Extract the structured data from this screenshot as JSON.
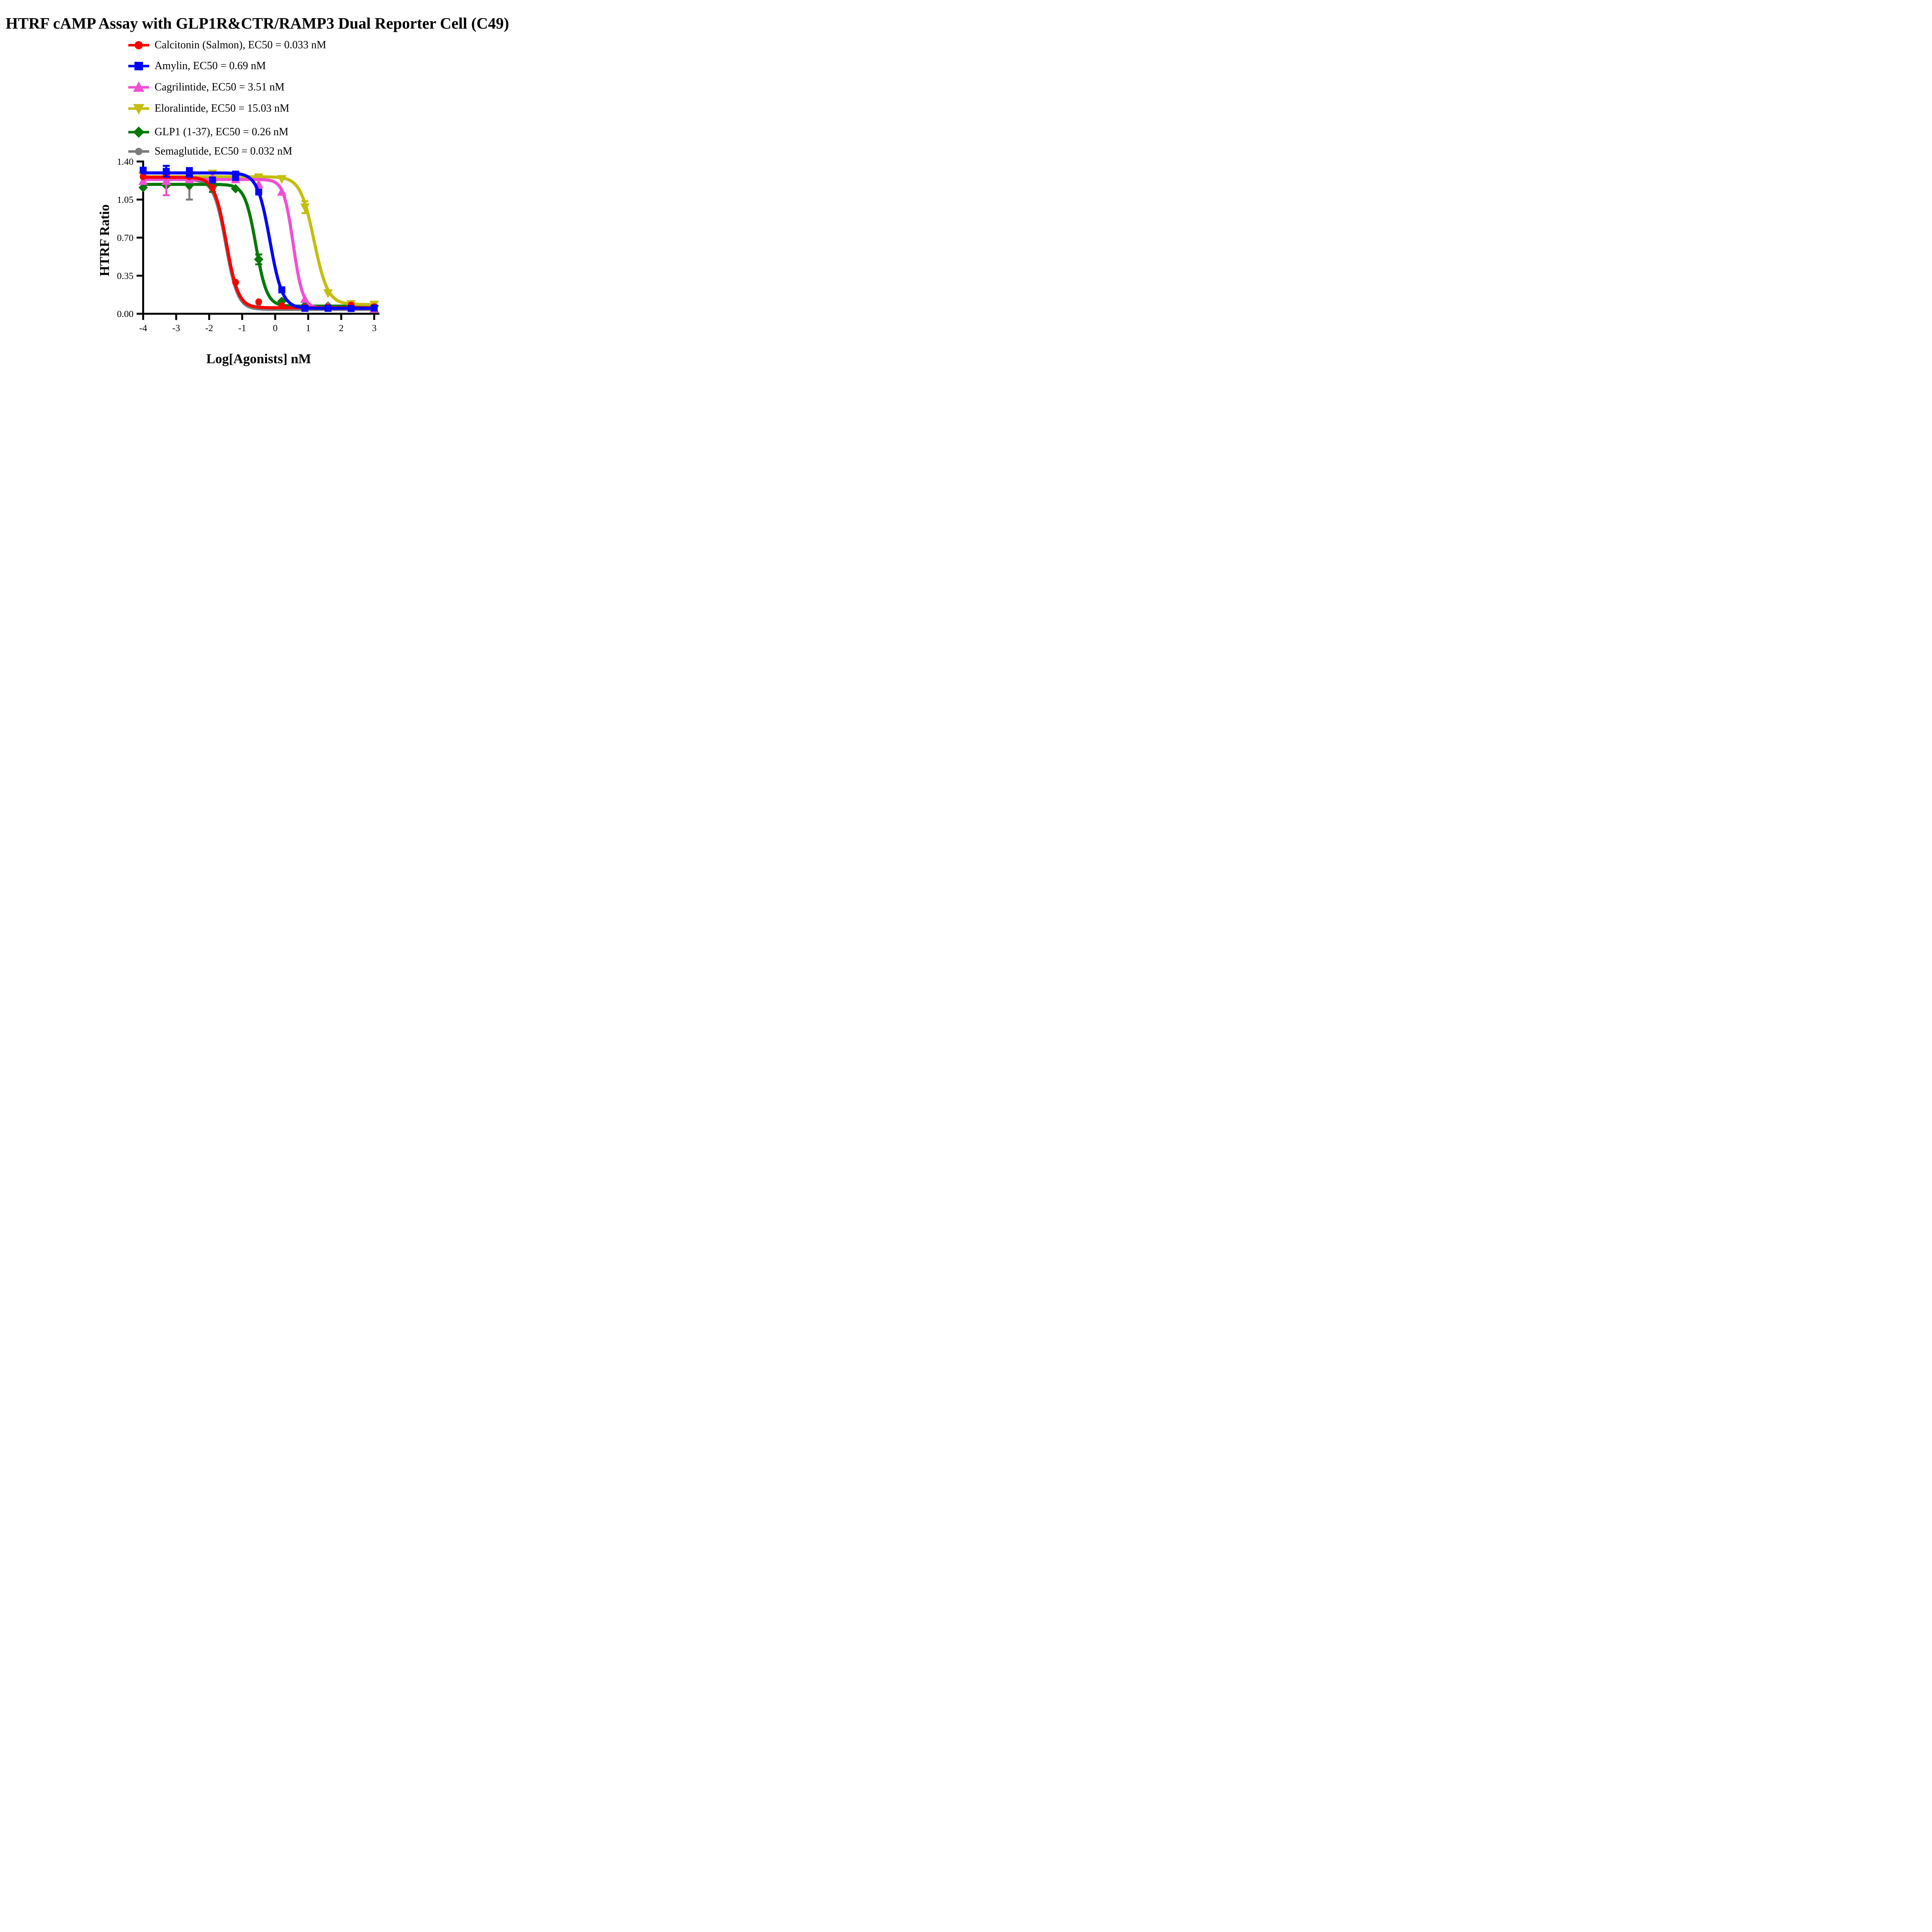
{
  "title": "HTRF cAMP Assay with GLP1R&CTR/RAMP3 Dual Reporter Cell (C49)",
  "legend": {
    "items": [
      {
        "label": "Calcitonin (Salmon), EC50 = 0.033 nM",
        "series": "Calcitonin (Salmon)"
      },
      {
        "label": "Amylin, EC50 = 0.69 nM",
        "series": "Amylin"
      },
      {
        "label": "Cagrilintide, EC50 = 3.51 nM",
        "series": "Cagrilintide"
      },
      {
        "label": "Eloralintide, EC50 = 15.03 nM",
        "series": "Eloralintide"
      },
      {
        "label": "GLP1 (1-37), EC50 = 0.26 nM",
        "series": "GLP1 (1-37)"
      },
      {
        "label": "Semaglutide, EC50 = 0.032 nM",
        "series": "Semaglutide"
      }
    ]
  },
  "axes": {
    "x": {
      "label": "Log[Agonists] nM",
      "min": -4,
      "max": 3,
      "ticks": [
        {
          "v": -4,
          "label": "-4"
        },
        {
          "v": -3,
          "label": "-3"
        },
        {
          "v": -2,
          "label": "-2"
        },
        {
          "v": -1,
          "label": "-1"
        },
        {
          "v": 0,
          "label": "0"
        },
        {
          "v": 1,
          "label": "1"
        },
        {
          "v": 2,
          "label": "2"
        },
        {
          "v": 3,
          "label": "3"
        }
      ]
    },
    "y": {
      "label": "HTRF Ratio",
      "min": 0,
      "max": 1.4,
      "ticks": [
        {
          "v": 0,
          "label": "0.00"
        },
        {
          "v": 0.35,
          "label": "0.35"
        },
        {
          "v": 0.7,
          "label": "0.70"
        },
        {
          "v": 1.05,
          "label": "1.05"
        },
        {
          "v": 1.4,
          "label": "1.40"
        }
      ]
    }
  },
  "chart_data": {
    "type": "line",
    "title": "HTRF cAMP Assay with GLP1R&CTR/RAMP3 Dual Reporter Cell (C49)",
    "xlabel": "Log[Agonists] nM",
    "ylabel": "HTRF Ratio",
    "xlim": [
      -4,
      3
    ],
    "ylim": [
      0,
      1.4
    ],
    "grid": false,
    "legend_position": "top-left",
    "x": [
      -4,
      -3.3,
      -2.6,
      -1.9,
      -1.2,
      -0.5,
      0.2,
      0.9,
      1.6,
      2.3,
      3
    ],
    "series": [
      {
        "name": "Semaglutide",
        "ec50_label": "EC50 = 0.032 nM",
        "ec50_nM": 0.032,
        "color": "#7B7B7B",
        "marker": "circle",
        "marker_size": 15,
        "fit": {
          "top": 1.235,
          "bottom": 0.04,
          "log_ec50": -1.495,
          "hill": 2.4
        },
        "values": [
          1.25,
          1.21,
          1.17,
          1.14,
          0.28,
          0.095,
          0.065,
          0.045,
          0.045,
          0.055,
          0.05
        ],
        "err_plus": [
          0,
          0,
          0,
          0,
          0,
          0,
          0,
          0,
          0,
          0,
          0
        ],
        "err_minus": [
          0,
          0,
          0.12,
          0,
          0,
          0,
          0,
          0,
          0,
          0,
          0
        ]
      },
      {
        "name": "GLP1 (1-37)",
        "ec50_label": "EC50 = 0.26 nM",
        "ec50_nM": 0.26,
        "color": "#067806",
        "marker": "diamond",
        "marker_size": 21,
        "fit": {
          "top": 1.19,
          "bottom": 0.07,
          "log_ec50": -0.585,
          "hill": 2.6
        },
        "values": [
          1.16,
          1.18,
          1.18,
          1.17,
          1.15,
          0.5,
          0.115,
          0.075,
          0.07,
          0.068,
          0.072
        ],
        "err_plus": [
          0,
          0,
          0,
          0,
          0,
          0.045,
          0,
          0,
          0,
          0,
          0
        ],
        "err_minus": [
          0,
          0,
          0,
          0.05,
          0,
          0.045,
          0,
          0,
          0,
          0,
          0
        ]
      },
      {
        "name": "Eloralintide",
        "ec50_label": "EC50 = 15.03 nM",
        "ec50_nM": 15.03,
        "color": "#C4BE0D",
        "marker": "triangle-down",
        "marker_size": 21,
        "fit": {
          "top": 1.26,
          "bottom": 0.085,
          "log_ec50": 1.177,
          "hill": 2.1
        },
        "values": [
          1.27,
          1.26,
          1.26,
          1.29,
          1.26,
          1.255,
          1.24,
          0.98,
          0.19,
          0.09,
          0.085
        ],
        "err_plus": [
          0,
          0,
          0,
          0,
          0,
          0,
          0,
          0.055,
          0,
          0,
          0
        ],
        "err_minus": [
          0,
          0,
          0,
          0,
          0,
          0,
          0,
          0.055,
          0,
          0,
          0
        ]
      },
      {
        "name": "Cagrilintide",
        "ec50_label": "EC50 = 3.51 nM",
        "ec50_nM": 3.51,
        "color": "#F04FD4",
        "marker": "triangle-up",
        "marker_size": 21,
        "fit": {
          "top": 1.235,
          "bottom": 0.05,
          "log_ec50": 0.545,
          "hill": 3.0
        },
        "values": [
          1.22,
          1.22,
          1.235,
          1.25,
          1.235,
          1.19,
          1.12,
          0.135,
          0.065,
          0.06,
          0.045
        ],
        "err_plus": [
          0,
          0,
          0,
          0,
          0,
          0,
          0,
          0,
          0,
          0,
          0
        ],
        "err_minus": [
          0,
          0.13,
          0,
          0,
          0,
          0,
          0,
          0,
          0,
          0,
          0
        ]
      },
      {
        "name": "Calcitonin (Salmon)",
        "ec50_label": "EC50 = 0.033 nM",
        "ec50_nM": 0.033,
        "color": "#F80000",
        "marker": "circle",
        "marker_size": 17.5,
        "fit": {
          "top": 1.255,
          "bottom": 0.055,
          "log_ec50": -1.481,
          "hill": 2.4
        },
        "values": [
          1.26,
          1.27,
          1.26,
          1.16,
          0.29,
          0.11,
          0.075,
          0.06,
          0.06,
          0.08,
          0.065
        ],
        "err_plus": [
          0,
          0,
          0,
          0,
          0,
          0,
          0,
          0,
          0,
          0,
          0
        ],
        "err_minus": [
          0,
          0,
          0,
          0,
          0,
          0,
          0,
          0,
          0,
          0,
          0
        ]
      },
      {
        "name": "Amylin",
        "ec50_label": "EC50 = 0.69 nM",
        "ec50_nM": 0.69,
        "color": "#0202F8",
        "marker": "square",
        "marker_size": 18,
        "fit": {
          "top": 1.295,
          "bottom": 0.05,
          "log_ec50": -0.161,
          "hill": 2.3
        },
        "values": [
          1.32,
          1.31,
          1.3,
          1.23,
          1.27,
          1.12,
          0.22,
          0.05,
          0.05,
          0.048,
          0.052
        ],
        "err_plus": [
          0,
          0.05,
          0.04,
          0,
          0.037,
          0,
          0,
          0,
          0,
          0,
          0
        ],
        "err_minus": [
          0,
          0.05,
          0.04,
          0,
          0.04,
          0,
          0,
          0,
          0,
          0,
          0
        ]
      }
    ]
  }
}
